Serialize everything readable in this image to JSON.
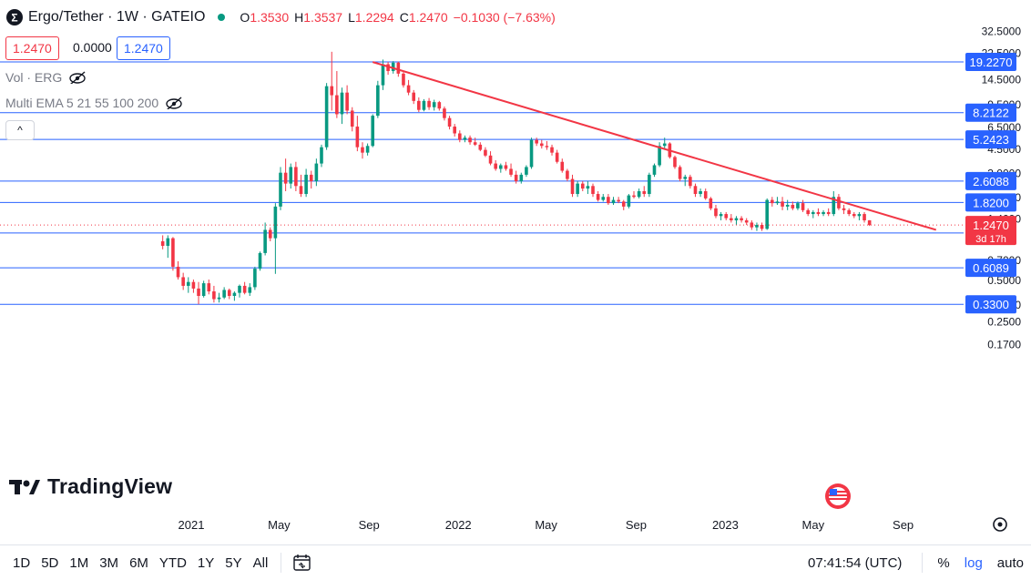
{
  "header": {
    "symbol_title": "Ergo/Tether · 1W · GATEIO",
    "ohlc": [
      {
        "key": "O",
        "value": "1.3530"
      },
      {
        "key": "H",
        "value": "1.3537"
      },
      {
        "key": "L",
        "value": "1.2294"
      },
      {
        "key": "C",
        "value": "1.2470"
      }
    ],
    "change": "−0.1030 (−7.63%)",
    "sell_price": "1.2470",
    "spread": "0.0000",
    "buy_price": "1.2470"
  },
  "studies": [
    {
      "label": "Vol · ERG",
      "icon": "eye-off-icon"
    },
    {
      "label": "Multi EMA 5 21 55 100 200",
      "icon": "eye-off-icon"
    }
  ],
  "collapse_label": "^",
  "logo_text": "TradingView",
  "bottom_bar": {
    "ranges": [
      "1D",
      "5D",
      "1M",
      "3M",
      "6M",
      "YTD",
      "1Y",
      "5Y",
      "All"
    ],
    "clock": "07:41:54 (UTC)",
    "percent": "%",
    "log": "log",
    "auto": "auto"
  },
  "colors": {
    "up": "#089981",
    "down": "#f23645",
    "level_line": "#2962ff",
    "trend_line": "#f23645",
    "accent": "#2962ff"
  },
  "chart_data": {
    "type": "candlestick",
    "scale": "log",
    "y_ticks": [
      "32.5000",
      "22.5000",
      "14.5000",
      "9.5000",
      "6.5000",
      "4.5000",
      "3.0000",
      "2.0000",
      "1.4000",
      "0.7000",
      "0.5000",
      "0.3300",
      "0.2500",
      "0.1700"
    ],
    "x_ticks": [
      "2021",
      "May",
      "Sep",
      "2022",
      "May",
      "Sep",
      "2023",
      "May",
      "Sep"
    ],
    "horizontal_levels": [
      "19.2270",
      "8.2122",
      "5.2423",
      "2.6088",
      "1.8200",
      "1.0923",
      "0.6089",
      "0.3300"
    ],
    "current_price": {
      "value": "1.2470",
      "countdown": "3d 17h"
    },
    "trend_line": [
      {
        "date": "2021-09-06",
        "value": 19.2
      },
      {
        "date": "2023-10-16",
        "value": 1.15
      }
    ],
    "candles_weekly_start": "2020-11-23",
    "candles": [
      [
        0.95,
        1.05,
        0.83,
        0.88
      ],
      [
        0.88,
        1.05,
        0.72,
        1.0
      ],
      [
        1.0,
        1.02,
        0.58,
        0.62
      ],
      [
        0.62,
        0.68,
        0.5,
        0.52
      ],
      [
        0.52,
        0.56,
        0.42,
        0.45
      ],
      [
        0.45,
        0.52,
        0.4,
        0.48
      ],
      [
        0.48,
        0.5,
        0.4,
        0.43
      ],
      [
        0.43,
        0.48,
        0.33,
        0.38
      ],
      [
        0.38,
        0.49,
        0.37,
        0.47
      ],
      [
        0.47,
        0.5,
        0.39,
        0.41
      ],
      [
        0.41,
        0.45,
        0.34,
        0.36
      ],
      [
        0.36,
        0.4,
        0.34,
        0.37
      ],
      [
        0.37,
        0.44,
        0.36,
        0.42
      ],
      [
        0.42,
        0.43,
        0.36,
        0.38
      ],
      [
        0.38,
        0.41,
        0.35,
        0.4
      ],
      [
        0.4,
        0.46,
        0.37,
        0.45
      ],
      [
        0.45,
        0.48,
        0.39,
        0.4
      ],
      [
        0.4,
        0.47,
        0.38,
        0.44
      ],
      [
        0.44,
        0.62,
        0.42,
        0.6
      ],
      [
        0.6,
        0.8,
        0.58,
        0.78
      ],
      [
        0.78,
        1.3,
        0.75,
        1.15
      ],
      [
        1.15,
        1.2,
        0.95,
        1.0
      ],
      [
        1.0,
        1.8,
        0.55,
        1.7
      ],
      [
        1.7,
        3.3,
        1.6,
        3.0
      ],
      [
        3.0,
        3.8,
        2.2,
        2.5
      ],
      [
        2.5,
        3.5,
        2.3,
        3.3
      ],
      [
        3.3,
        3.6,
        2.2,
        2.4
      ],
      [
        2.4,
        2.9,
        2.0,
        2.1
      ],
      [
        2.1,
        3.2,
        2.0,
        2.9
      ],
      [
        2.9,
        3.1,
        2.3,
        2.6
      ],
      [
        2.6,
        3.8,
        2.4,
        3.5
      ],
      [
        3.5,
        4.8,
        3.3,
        4.6
      ],
      [
        4.6,
        13.5,
        4.4,
        12.8
      ],
      [
        12.8,
        22.8,
        8.5,
        11.0
      ],
      [
        11.0,
        16.5,
        7.5,
        8.0
      ],
      [
        8.0,
        12.5,
        6.8,
        11.5
      ],
      [
        11.5,
        13.0,
        8.0,
        8.5
      ],
      [
        8.5,
        9.0,
        6.0,
        6.5
      ],
      [
        6.5,
        7.8,
        4.3,
        4.6
      ],
      [
        4.6,
        5.0,
        3.8,
        4.2
      ],
      [
        4.2,
        4.9,
        4.0,
        4.7
      ],
      [
        4.7,
        8.0,
        4.6,
        7.8
      ],
      [
        7.8,
        14.0,
        7.5,
        13.0
      ],
      [
        13.0,
        20.0,
        12.0,
        18.5
      ],
      [
        18.5,
        19.2,
        15.5,
        16.5
      ],
      [
        16.5,
        19.5,
        15.8,
        19.0
      ],
      [
        19.0,
        19.3,
        15.0,
        15.8
      ],
      [
        15.8,
        16.2,
        12.5,
        13.0
      ],
      [
        13.0,
        14.2,
        11.0,
        11.5
      ],
      [
        11.5,
        12.0,
        9.5,
        10.0
      ],
      [
        10.0,
        10.6,
        8.3,
        8.6
      ],
      [
        8.6,
        10.3,
        8.4,
        10.0
      ],
      [
        10.0,
        10.5,
        8.6,
        9.0
      ],
      [
        9.0,
        10.2,
        8.5,
        9.8
      ],
      [
        9.8,
        10.0,
        8.5,
        8.8
      ],
      [
        8.8,
        9.1,
        7.2,
        7.5
      ],
      [
        7.5,
        7.8,
        6.2,
        6.5
      ],
      [
        6.5,
        6.8,
        5.5,
        5.8
      ],
      [
        5.8,
        6.1,
        5.0,
        5.2
      ],
      [
        5.2,
        5.6,
        5.0,
        5.4
      ],
      [
        5.4,
        5.6,
        4.8,
        5.0
      ],
      [
        5.0,
        5.4,
        4.7,
        4.8
      ],
      [
        4.8,
        5.0,
        4.3,
        4.4
      ],
      [
        4.4,
        4.6,
        3.9,
        4.0
      ],
      [
        4.0,
        4.3,
        3.4,
        3.5
      ],
      [
        3.5,
        3.7,
        3.1,
        3.2
      ],
      [
        3.2,
        3.5,
        3.0,
        3.4
      ],
      [
        3.4,
        3.6,
        3.1,
        3.2
      ],
      [
        3.2,
        3.5,
        2.8,
        2.9
      ],
      [
        2.9,
        3.1,
        2.5,
        2.6
      ],
      [
        2.6,
        3.0,
        2.5,
        2.9
      ],
      [
        2.9,
        3.4,
        2.8,
        3.3
      ],
      [
        3.3,
        5.4,
        3.2,
        5.2
      ],
      [
        5.2,
        5.4,
        4.7,
        4.9
      ],
      [
        4.9,
        5.2,
        4.5,
        4.7
      ],
      [
        4.7,
        5.1,
        4.4,
        4.6
      ],
      [
        4.6,
        4.8,
        4.0,
        4.2
      ],
      [
        4.2,
        4.4,
        3.5,
        3.6
      ],
      [
        3.6,
        3.8,
        3.0,
        3.1
      ],
      [
        3.1,
        3.2,
        2.6,
        2.7
      ],
      [
        2.7,
        2.9,
        2.0,
        2.1
      ],
      [
        2.1,
        2.6,
        2.0,
        2.5
      ],
      [
        2.5,
        2.6,
        2.2,
        2.3
      ],
      [
        2.3,
        2.6,
        2.1,
        2.4
      ],
      [
        2.4,
        2.5,
        2.0,
        2.1
      ],
      [
        2.1,
        2.2,
        1.85,
        1.9
      ],
      [
        1.9,
        2.1,
        1.85,
        2.0
      ],
      [
        2.0,
        2.1,
        1.75,
        1.8
      ],
      [
        1.8,
        2.0,
        1.75,
        1.9
      ],
      [
        1.9,
        2.0,
        1.8,
        1.85
      ],
      [
        1.85,
        1.9,
        1.6,
        1.7
      ],
      [
        1.7,
        2.1,
        1.65,
        2.05
      ],
      [
        2.05,
        2.2,
        1.95,
        2.0
      ],
      [
        2.0,
        2.3,
        1.95,
        2.2
      ],
      [
        2.2,
        2.4,
        2.0,
        2.1
      ],
      [
        2.1,
        3.0,
        2.0,
        2.9
      ],
      [
        2.9,
        3.5,
        2.8,
        3.4
      ],
      [
        3.4,
        5.0,
        3.3,
        4.7
      ],
      [
        4.7,
        5.4,
        4.4,
        4.9
      ],
      [
        4.9,
        5.0,
        3.8,
        3.9
      ],
      [
        3.9,
        4.0,
        3.2,
        3.3
      ],
      [
        3.3,
        3.4,
        2.6,
        2.7
      ],
      [
        2.7,
        2.9,
        2.4,
        2.8
      ],
      [
        2.8,
        2.9,
        2.3,
        2.4
      ],
      [
        2.4,
        2.5,
        2.0,
        2.1
      ],
      [
        2.1,
        2.3,
        2.0,
        2.2
      ],
      [
        2.2,
        2.3,
        1.9,
        1.95
      ],
      [
        1.95,
        2.0,
        1.6,
        1.65
      ],
      [
        1.65,
        1.75,
        1.4,
        1.45
      ],
      [
        1.45,
        1.55,
        1.35,
        1.5
      ],
      [
        1.5,
        1.55,
        1.35,
        1.4
      ],
      [
        1.4,
        1.5,
        1.3,
        1.35
      ],
      [
        1.35,
        1.45,
        1.25,
        1.4
      ],
      [
        1.4,
        1.45,
        1.3,
        1.35
      ],
      [
        1.35,
        1.4,
        1.25,
        1.3
      ],
      [
        1.3,
        1.35,
        1.15,
        1.2
      ],
      [
        1.2,
        1.3,
        1.13,
        1.25
      ],
      [
        1.25,
        1.3,
        1.13,
        1.17
      ],
      [
        1.17,
        1.95,
        1.15,
        1.9
      ],
      [
        1.9,
        2.0,
        1.7,
        1.8
      ],
      [
        1.8,
        2.0,
        1.75,
        1.85
      ],
      [
        1.85,
        2.0,
        1.6,
        1.7
      ],
      [
        1.7,
        1.9,
        1.6,
        1.75
      ],
      [
        1.75,
        1.85,
        1.6,
        1.65
      ],
      [
        1.65,
        1.85,
        1.6,
        1.8
      ],
      [
        1.8,
        1.9,
        1.55,
        1.6
      ],
      [
        1.6,
        1.65,
        1.45,
        1.5
      ],
      [
        1.5,
        1.6,
        1.4,
        1.55
      ],
      [
        1.55,
        1.65,
        1.45,
        1.5
      ],
      [
        1.5,
        1.6,
        1.45,
        1.55
      ],
      [
        1.55,
        1.65,
        1.45,
        1.5
      ],
      [
        1.5,
        2.2,
        1.45,
        2.0
      ],
      [
        2.0,
        2.1,
        1.6,
        1.65
      ],
      [
        1.65,
        1.75,
        1.5,
        1.6
      ],
      [
        1.6,
        1.65,
        1.45,
        1.5
      ],
      [
        1.5,
        1.55,
        1.4,
        1.45
      ],
      [
        1.45,
        1.55,
        1.35,
        1.5
      ],
      [
        1.5,
        1.55,
        1.3,
        1.35
      ],
      [
        1.35,
        1.354,
        1.229,
        1.247
      ]
    ]
  }
}
